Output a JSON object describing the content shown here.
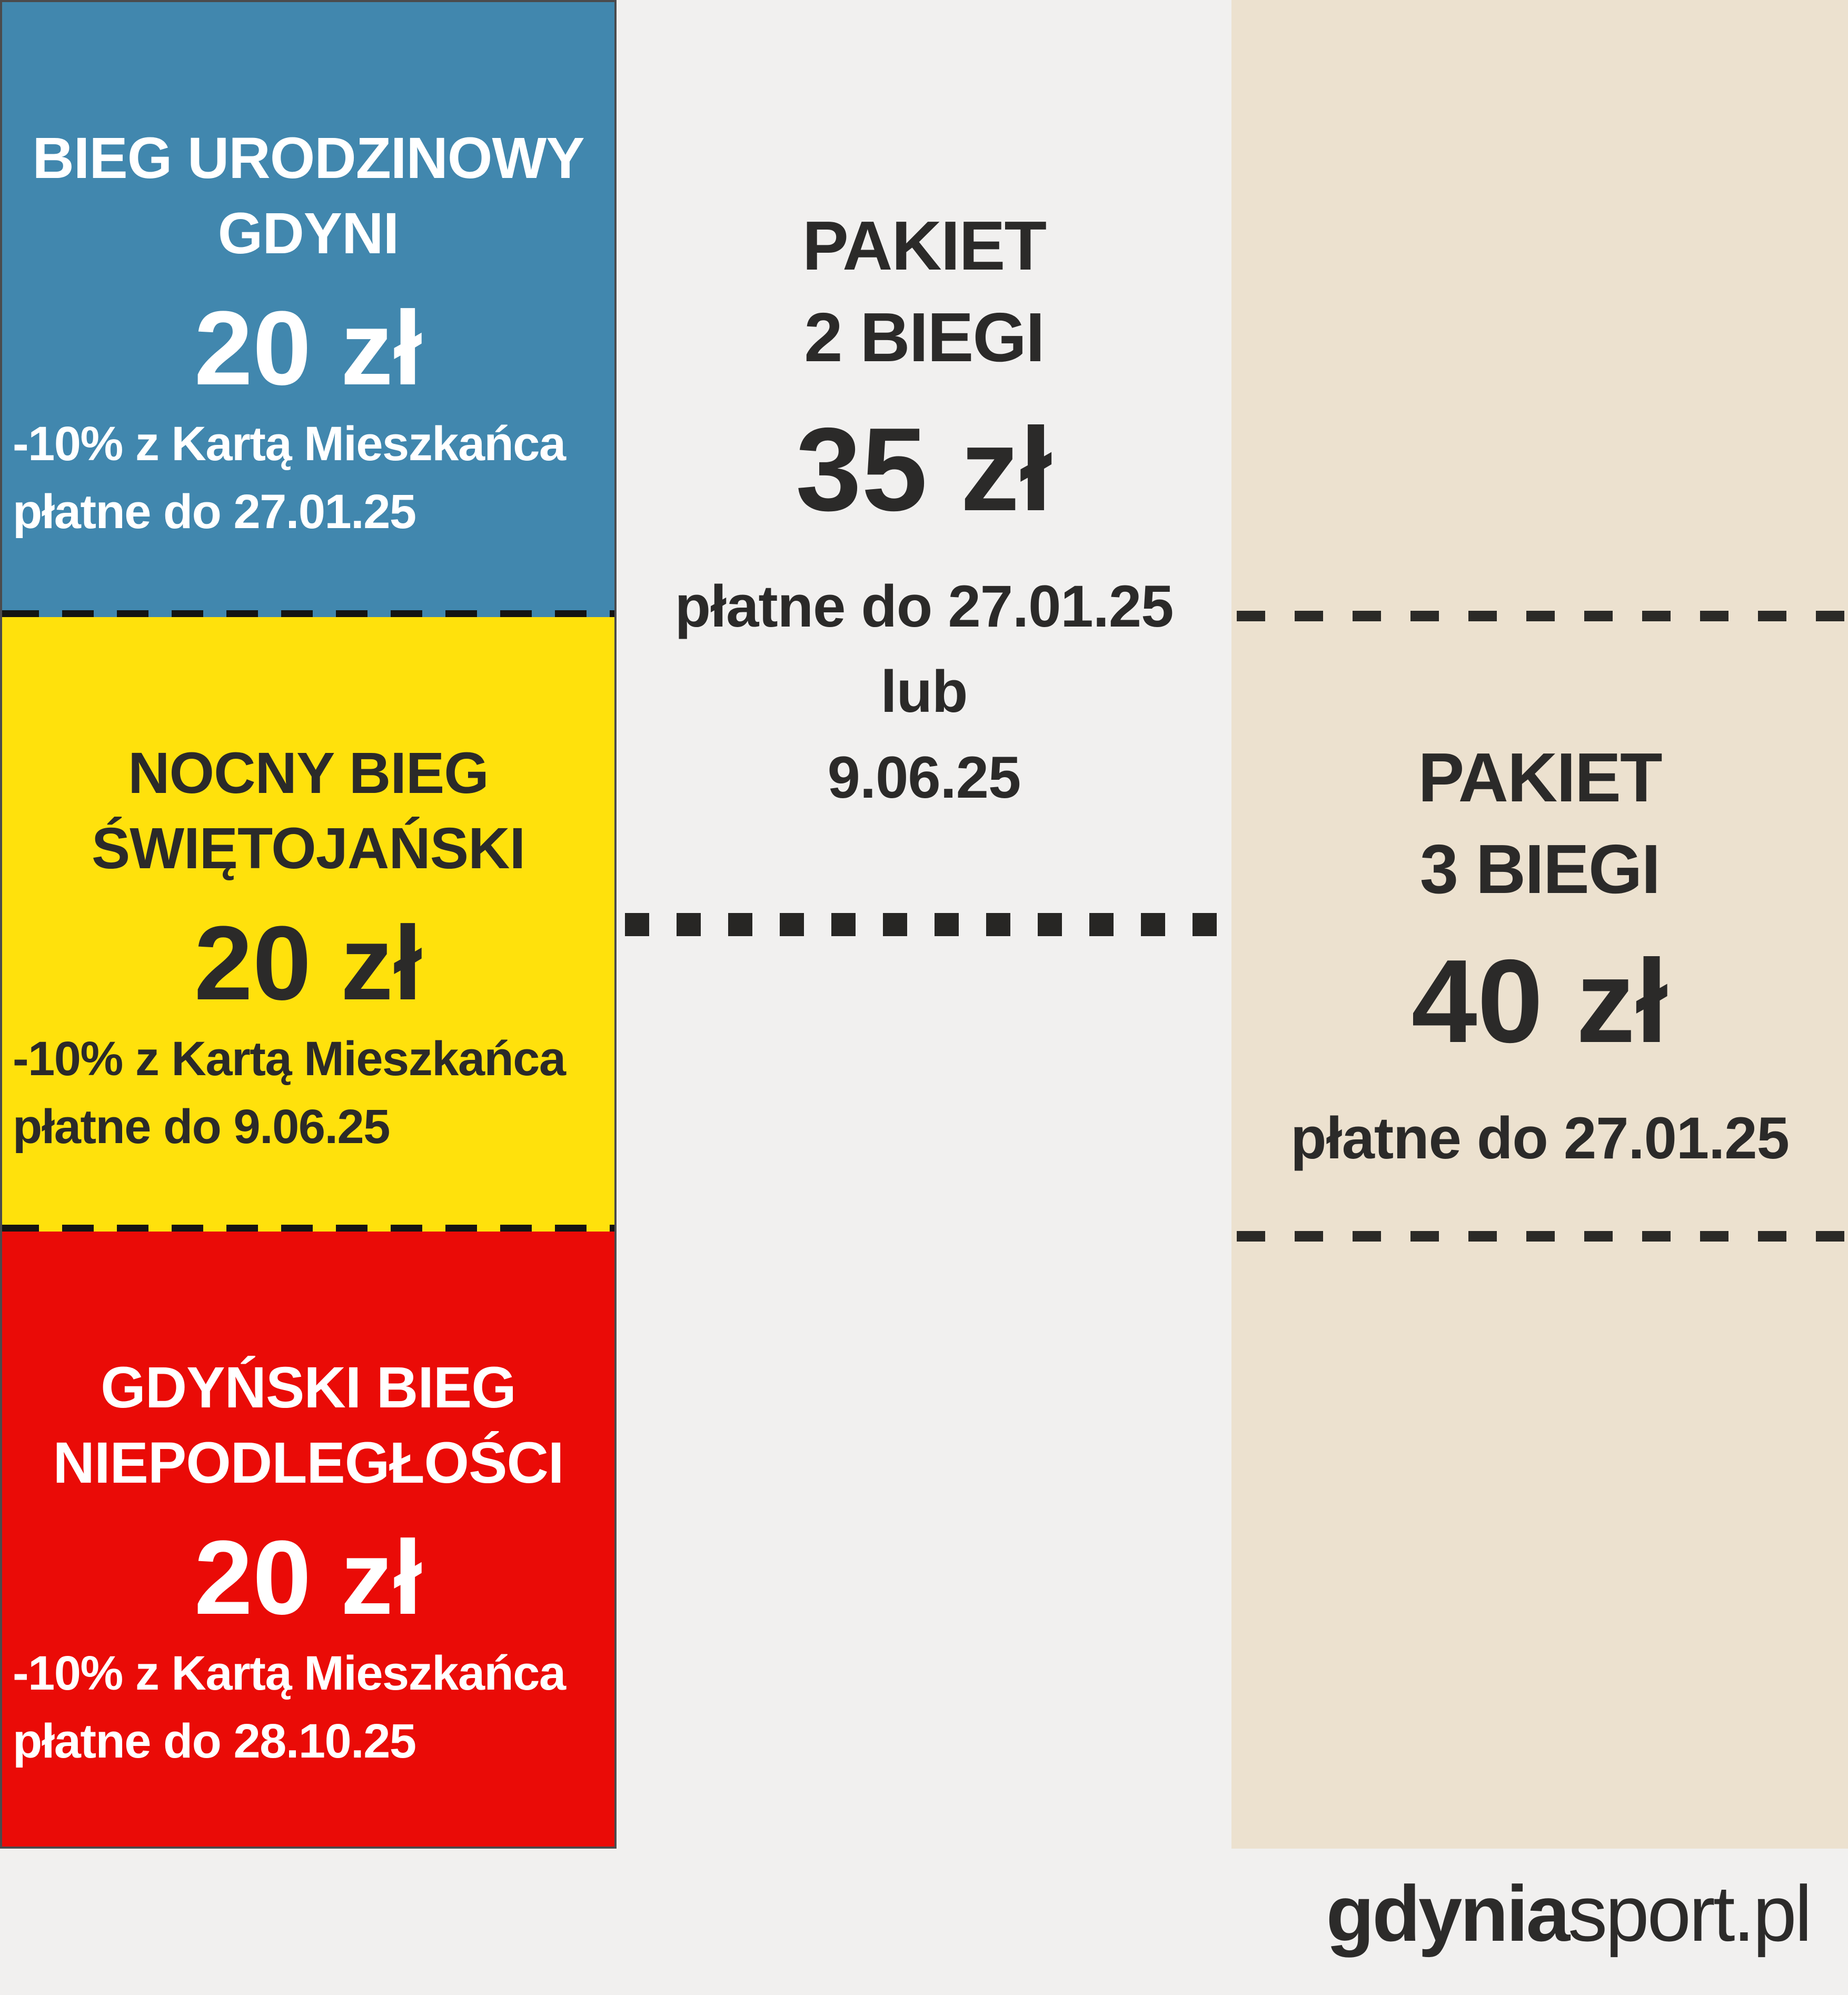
{
  "colors": {
    "ticket_blue": "#4187ae",
    "ticket_yellow": "#ffe10c",
    "ticket_red": "#ea0b07",
    "panel_beige": "#ece1cf",
    "background_gray": "#f1f0ef",
    "dark_text": "#2b2a29"
  },
  "tickets": [
    {
      "title_lines": [
        "BIEG URODZINOWY",
        "GDYNI"
      ],
      "price": "20 zł",
      "note_discount": "-10% z Kartą Mieszkańca",
      "note_payment": "płatne do 27.01.25"
    },
    {
      "title_lines": [
        "NOCNY BIEG",
        "ŚWIĘTOJAŃSKI"
      ],
      "price": "20 zł",
      "note_discount": "-10% z Kartą Mieszkańca",
      "note_payment": "płatne do 9.06.25"
    },
    {
      "title_lines": [
        "GDYŃSKI BIEG",
        "NIEPODLEGŁOŚCI"
      ],
      "price": "20 zł",
      "note_discount": "-10% z Kartą Mieszkańca",
      "note_payment": "płatne do 28.10.25"
    }
  ],
  "packages": [
    {
      "title_line1": "PAKIET",
      "title_line2": "2 BIEGI",
      "price": "35 zł",
      "payment_lines": [
        "płatne do 27.01.25",
        "lub",
        "9.06.25"
      ]
    },
    {
      "title_line1": "PAKIET",
      "title_line2": "3 BIEGI",
      "price": "40 zł",
      "payment_lines": [
        "płatne do 27.01.25"
      ]
    }
  ],
  "footer": {
    "brand_primary": "gdynia",
    "brand_secondary": "sport",
    "brand_tld": ".pl"
  }
}
